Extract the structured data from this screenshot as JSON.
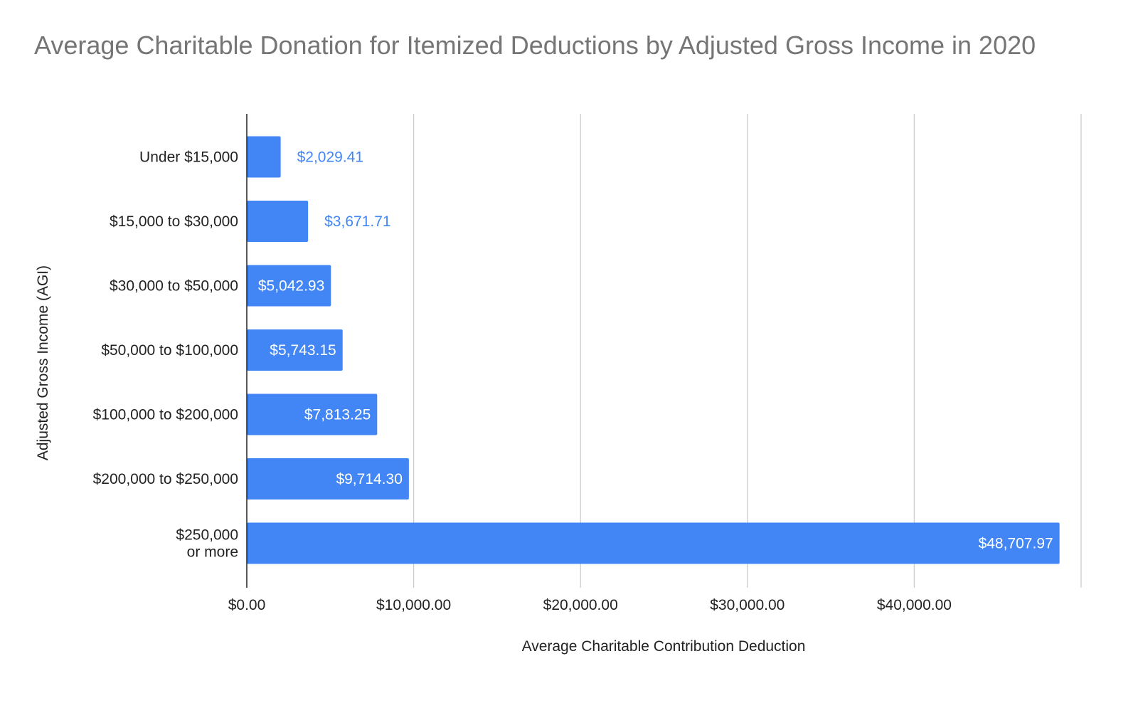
{
  "chart_data": {
    "type": "bar",
    "orientation": "horizontal",
    "title": "Average Charitable Donation for Itemized Deductions by Adjusted Gross Income in 2020",
    "xlabel": "Average Charitable Contribution Deduction",
    "ylabel": "Adjusted Gross Income (AGI)",
    "categories": [
      [
        "Under $15,000"
      ],
      [
        "$15,000 to $30,000"
      ],
      [
        "$30,000 to $50,000"
      ],
      [
        "$50,000 to $100,000"
      ],
      [
        "$100,000 to $200,000"
      ],
      [
        "$200,000 to $250,000"
      ],
      [
        "$250,000",
        "or more"
      ]
    ],
    "values": [
      2029.41,
      3671.71,
      5042.93,
      5743.15,
      7813.25,
      9714.3,
      48707.97
    ],
    "value_labels": [
      "$2,029.41",
      "$3,671.71",
      "$5,042.93",
      "$5,743.15",
      "$7,813.25",
      "$9,714.30",
      "$48,707.97"
    ],
    "xlim": [
      0,
      50000
    ],
    "ticks": [
      0,
      10000,
      20000,
      30000,
      40000
    ],
    "tick_labels": [
      "$0.00",
      "$10,000.00",
      "$20,000.00",
      "$30,000.00",
      "$40,000.00"
    ],
    "grid": true,
    "legend": "none",
    "colors": {
      "bar": "#4285f4",
      "grid": "#cccccc",
      "axis": "#222222"
    }
  }
}
